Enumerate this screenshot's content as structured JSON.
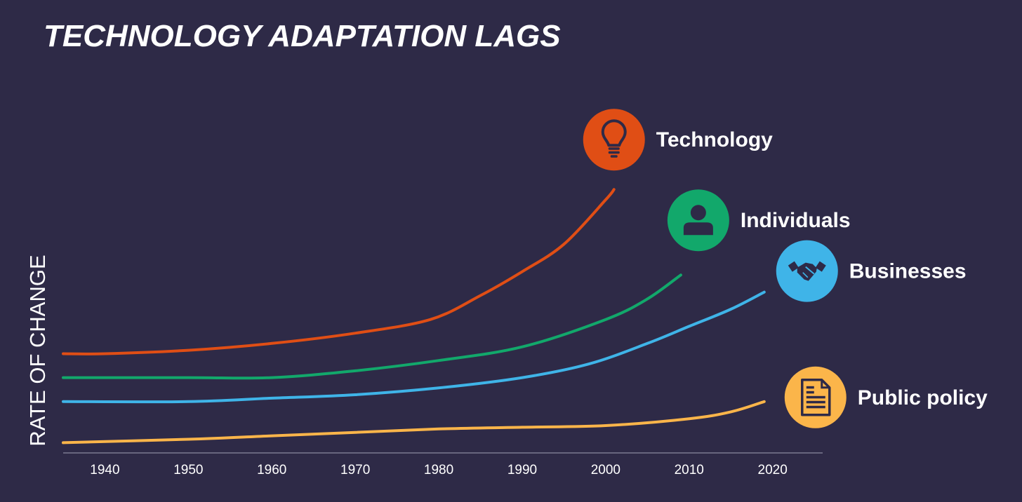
{
  "chart_data": {
    "type": "line",
    "title": "TECHNOLOGY ADAPTATION LAGS",
    "xlabel": "",
    "ylabel": "RATE OF CHANGE",
    "xlim": [
      1935,
      2026
    ],
    "ylim": [
      0,
      100
    ],
    "x_ticks": [
      1940,
      1950,
      1960,
      1970,
      1980,
      1990,
      2000,
      2010,
      2020
    ],
    "tick_labels": [
      "1940",
      "1950",
      "1960",
      "1970",
      "1980",
      "1990",
      "2000",
      "2010",
      "2020"
    ],
    "y_ticks_shown": false,
    "grid": false,
    "legend": "none",
    "series": [
      {
        "name": "Technology",
        "color": "#e04e15",
        "icon": "lightbulb-icon",
        "x": [
          1935,
          1940,
          1950,
          1960,
          1970,
          1979,
          1985,
          1990,
          1995,
          2000,
          2001
        ],
        "y": [
          29,
          29,
          30,
          32,
          35,
          39,
          46,
          53,
          61,
          74,
          77
        ]
      },
      {
        "name": "Individuals",
        "color": "#12a86b",
        "icon": "person-icon",
        "x": [
          1935,
          1950,
          1960,
          1970,
          1980,
          1990,
          2000,
          2005,
          2009
        ],
        "y": [
          22,
          22,
          22,
          24,
          27,
          31,
          39,
          45,
          52
        ]
      },
      {
        "name": "Businesses",
        "color": "#3fb4e8",
        "icon": "handshake-icon",
        "x": [
          1935,
          1950,
          1960,
          1970,
          1980,
          1990,
          1998,
          2005,
          2010,
          2015,
          2019
        ],
        "y": [
          15,
          15,
          16,
          17,
          19,
          22,
          26,
          32,
          37,
          42,
          47
        ]
      },
      {
        "name": "Public policy",
        "color": "#fbb54a",
        "icon": "document-icon",
        "x": [
          1935,
          1950,
          1960,
          1970,
          1980,
          1990,
          2000,
          2010,
          2015,
          2019
        ],
        "y": [
          3,
          4,
          5,
          6,
          7,
          7.5,
          8,
          10,
          12,
          15
        ]
      }
    ]
  }
}
